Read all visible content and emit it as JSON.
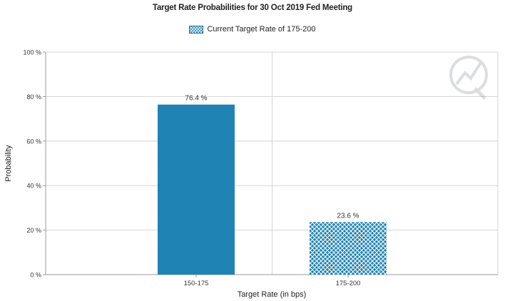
{
  "chart_data": {
    "type": "bar",
    "title": "Target Rate Probabilities for 30 Oct 2019 Fed Meeting",
    "legend": {
      "label": "Current Target Rate of 175-200",
      "position": "top-center"
    },
    "categories": [
      "150-175",
      "175-200"
    ],
    "values": [
      76.4,
      23.6
    ],
    "value_labels": [
      "76.4 %",
      "23.6 %"
    ],
    "bar_styles": [
      "solid",
      "crosshatch"
    ],
    "xlabel": "Target Rate (in bps)",
    "ylabel": "Probability",
    "ylim": [
      0,
      100
    ],
    "yticks": [
      0,
      20,
      40,
      60,
      80,
      100
    ],
    "ytick_labels": [
      "0 %",
      "20 %",
      "40 %",
      "60 %",
      "80 %",
      "100 %"
    ],
    "grid": true
  },
  "colors": {
    "bar": "#1f83b4",
    "hatch_line": "#ffffff",
    "grid": "#d4d4d4",
    "axis": "#9a9a9a"
  }
}
